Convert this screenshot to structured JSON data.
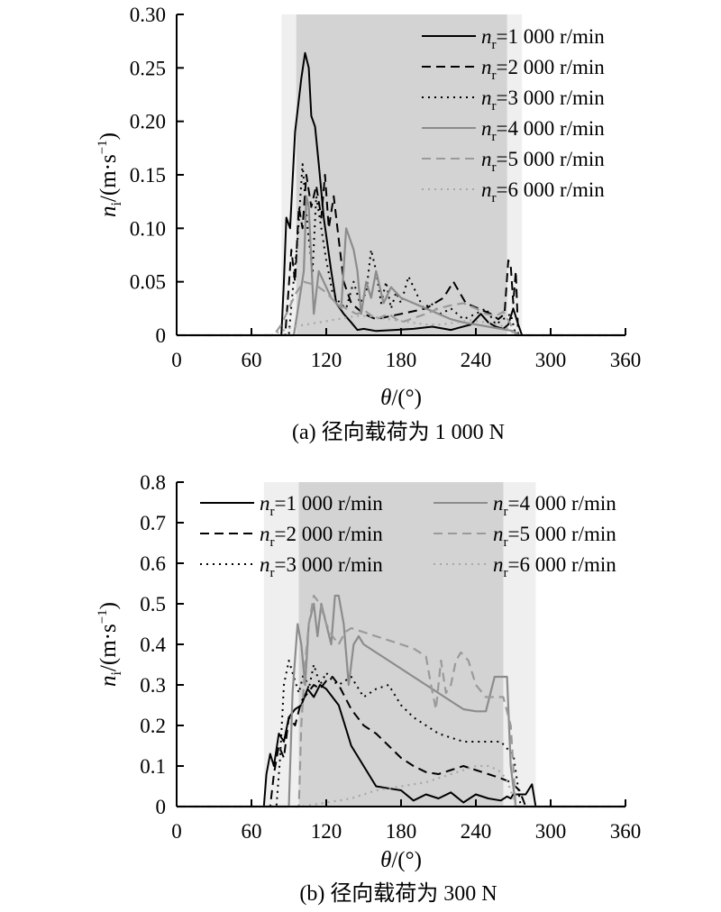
{
  "colors": {
    "band_light": "#efefef",
    "band_dark": "#d3d3d3",
    "series": [
      "#000000",
      "#000000",
      "#000000",
      "#8c8c8c",
      "#9a9a9a",
      "#a8a8a8"
    ]
  },
  "chart_data": [
    {
      "type": "line",
      "caption": "(a) 径向载荷为 1 000 N",
      "xlabel_sym": "θ",
      "xlabel_unit": "/(°)",
      "ylabel_sym": "n",
      "ylabel_sub": "i",
      "ylabel_unit_pre": "/(m·s",
      "ylabel_unit_sup": "−1",
      "ylabel_unit_post": ")",
      "xlim": [
        0,
        360
      ],
      "ylim": [
        0,
        0.3
      ],
      "xticks": [
        0,
        60,
        120,
        180,
        240,
        300,
        360
      ],
      "yticks": [
        0,
        0.05,
        0.1,
        0.15,
        0.2,
        0.25,
        0.3
      ],
      "ytick_labels": [
        "0",
        "0.05",
        "0.10",
        "0.15",
        "0.20",
        "0.25",
        "0.30"
      ],
      "bands": [
        {
          "x0": 84,
          "x1": 277,
          "shade": "light"
        },
        {
          "x0": 96,
          "x1": 265,
          "shade": "dark"
        }
      ],
      "legend": {
        "placement": "top-right",
        "columns": 1
      },
      "series": [
        {
          "name_sym": "n",
          "name_sub": "r",
          "name_rest": "=1 000 r/min",
          "dash": "solid",
          "x": [
            0,
            84,
            86,
            88,
            91,
            95,
            100,
            103,
            106,
            108,
            111,
            114,
            118,
            124,
            128,
            134,
            140,
            145,
            150,
            160,
            175,
            190,
            205,
            220,
            236,
            244,
            250,
            256,
            262,
            266,
            270,
            274,
            277,
            360
          ],
          "y": [
            0,
            0,
            0.05,
            0.11,
            0.1,
            0.19,
            0.24,
            0.264,
            0.25,
            0.205,
            0.195,
            0.16,
            0.11,
            0.06,
            0.03,
            0.02,
            0.012,
            0.005,
            0.006,
            0.004,
            0.005,
            0.006,
            0.008,
            0.005,
            0.01,
            0.02,
            0.012,
            0.008,
            0.006,
            0.01,
            0.025,
            0.01,
            0,
            0
          ]
        },
        {
          "name_sym": "n",
          "name_sub": "r",
          "name_rest": "=2 000 r/min",
          "dash": "dashed",
          "x": [
            0,
            87,
            89,
            92,
            95,
            98,
            101,
            104,
            108,
            112,
            116,
            119,
            122,
            126,
            130,
            134,
            140,
            150,
            160,
            180,
            200,
            214,
            222,
            232,
            242,
            252,
            258,
            263,
            266,
            268,
            270,
            272,
            274,
            360
          ],
          "y": [
            0,
            0,
            0.03,
            0.08,
            0.05,
            0.12,
            0.1,
            0.15,
            0.12,
            0.14,
            0.11,
            0.15,
            0.1,
            0.13,
            0.09,
            0.05,
            0.03,
            0.02,
            0.015,
            0.02,
            0.025,
            0.035,
            0.05,
            0.03,
            0.025,
            0.02,
            0.015,
            0.02,
            0.07,
            0.065,
            0.03,
            0.06,
            0,
            0
          ]
        },
        {
          "name_sym": "n",
          "name_sub": "r",
          "name_rest": "=3 000 r/min",
          "dash": "dotted",
          "x": [
            0,
            90,
            93,
            97,
            101,
            105,
            109,
            112,
            116,
            120,
            125,
            131,
            136,
            142,
            147,
            152,
            156,
            160,
            164,
            168,
            172,
            176,
            180,
            186,
            192,
            198,
            204,
            212,
            220,
            230,
            240,
            248,
            256,
            262,
            268,
            272,
            360
          ],
          "y": [
            0,
            0,
            0.04,
            0.09,
            0.16,
            0.1,
            0.06,
            0.13,
            0.1,
            0.07,
            0.04,
            0.03,
            0.025,
            0.05,
            0.03,
            0.04,
            0.08,
            0.06,
            0.03,
            0.05,
            0.025,
            0.04,
            0.03,
            0.055,
            0.04,
            0.025,
            0.03,
            0.02,
            0.025,
            0.015,
            0.02,
            0.025,
            0.01,
            0.015,
            0.02,
            0,
            0
          ]
        },
        {
          "name_sym": "n",
          "name_sub": "r",
          "name_rest": "=4 000 r/min",
          "dash": "solid",
          "x": [
            0,
            94,
            98,
            102,
            104,
            106,
            110,
            114,
            118,
            124,
            128,
            132,
            136,
            142,
            145,
            148,
            152,
            156,
            160,
            166,
            172,
            180,
            190,
            200,
            210,
            220,
            230,
            240,
            250,
            260,
            270,
            275,
            360
          ],
          "y": [
            0,
            0,
            0.03,
            0.06,
            0.13,
            0.12,
            0.02,
            0.06,
            0.05,
            0.035,
            0.03,
            0.025,
            0.1,
            0.08,
            0.06,
            0.02,
            0.05,
            0.035,
            0.06,
            0.03,
            0.045,
            0.035,
            0.03,
            0.025,
            0.02,
            0.015,
            0.012,
            0.01,
            0.008,
            0.006,
            0.004,
            0,
            0
          ]
        },
        {
          "name_sym": "n",
          "name_sub": "r",
          "name_rest": "=5 000 r/min",
          "dash": "dashed",
          "x": [
            0,
            78,
            84,
            90,
            96,
            102,
            108,
            114,
            120,
            128,
            136,
            144,
            152,
            160,
            170,
            180,
            190,
            200,
            210,
            220,
            230,
            240,
            248,
            256,
            262,
            268,
            272,
            360
          ],
          "y": [
            0,
            0,
            0.01,
            0.025,
            0.04,
            0.05,
            0.048,
            0.045,
            0.04,
            0.03,
            0.025,
            0.02,
            0.022,
            0.015,
            0.02,
            0.012,
            0.016,
            0.02,
            0.025,
            0.028,
            0.03,
            0.025,
            0.02,
            0.018,
            0.022,
            0.01,
            0,
            0
          ]
        },
        {
          "name_sym": "n",
          "name_sub": "r",
          "name_rest": "=6 000 r/min",
          "dash": "dotted",
          "x": [
            0,
            76,
            84,
            94,
            104,
            114,
            124,
            134,
            144,
            154,
            164,
            176,
            188,
            200,
            212,
            224,
            236,
            248,
            258,
            266,
            272,
            360
          ],
          "y": [
            0,
            0,
            0.004,
            0.008,
            0.01,
            0.012,
            0.014,
            0.016,
            0.018,
            0.018,
            0.016,
            0.014,
            0.012,
            0.01,
            0.01,
            0.012,
            0.014,
            0.012,
            0.01,
            0.006,
            0,
            0
          ]
        }
      ]
    },
    {
      "type": "line",
      "caption": "(b) 径向载荷为 300 N",
      "xlabel_sym": "θ",
      "xlabel_unit": "/(°)",
      "ylabel_sym": "n",
      "ylabel_sub": "i",
      "ylabel_unit_pre": "/(m·s",
      "ylabel_unit_sup": "−1",
      "ylabel_unit_post": ")",
      "xlim": [
        0,
        360
      ],
      "ylim": [
        0,
        0.8
      ],
      "xticks": [
        0,
        60,
        120,
        180,
        240,
        300,
        360
      ],
      "yticks": [
        0,
        0.1,
        0.2,
        0.3,
        0.4,
        0.5,
        0.6,
        0.7,
        0.8
      ],
      "ytick_labels": [
        "0",
        "0.1",
        "0.2",
        "0.3",
        "0.4",
        "0.5",
        "0.6",
        "0.7",
        "0.8"
      ],
      "bands": [
        {
          "x0": 70,
          "x1": 288,
          "shade": "light"
        },
        {
          "x0": 98,
          "x1": 262,
          "shade": "dark"
        }
      ],
      "legend": {
        "placement": "top",
        "columns": 2
      },
      "series": [
        {
          "name_sym": "n",
          "name_sub": "r",
          "name_rest": "=1 000 r/min",
          "dash": "solid",
          "x": [
            0,
            70,
            72,
            75,
            78,
            82,
            86,
            90,
            95,
            100,
            105,
            110,
            115,
            120,
            125,
            130,
            135,
            140,
            150,
            160,
            170,
            180,
            190,
            200,
            210,
            220,
            230,
            240,
            250,
            260,
            265,
            268,
            270,
            275,
            280,
            285,
            288,
            360
          ],
          "y": [
            0,
            0,
            0.08,
            0.13,
            0.1,
            0.18,
            0.16,
            0.22,
            0.24,
            0.25,
            0.29,
            0.27,
            0.3,
            0.29,
            0.27,
            0.25,
            0.2,
            0.15,
            0.1,
            0.05,
            0.045,
            0.04,
            0.015,
            0.03,
            0.02,
            0.035,
            0.01,
            0.03,
            0.02,
            0.015,
            0.025,
            0.02,
            0.03,
            0.03,
            0.03,
            0.055,
            0,
            0
          ]
        },
        {
          "name_sym": "n",
          "name_sub": "r",
          "name_rest": "=2 000 r/min",
          "dash": "dashed",
          "x": [
            0,
            75,
            78,
            82,
            86,
            90,
            95,
            100,
            105,
            110,
            115,
            120,
            125,
            130,
            140,
            150,
            160,
            170,
            180,
            190,
            200,
            210,
            220,
            230,
            240,
            250,
            260,
            268,
            275,
            280,
            360
          ],
          "y": [
            0,
            0,
            0.08,
            0.15,
            0.12,
            0.22,
            0.2,
            0.26,
            0.28,
            0.3,
            0.29,
            0.31,
            0.32,
            0.3,
            0.24,
            0.2,
            0.18,
            0.15,
            0.12,
            0.1,
            0.085,
            0.08,
            0.09,
            0.1,
            0.09,
            0.08,
            0.07,
            0.06,
            0.04,
            0,
            0
          ]
        },
        {
          "name_sym": "n",
          "name_sub": "r",
          "name_rest": "=3 000 r/min",
          "dash": "dotted",
          "x": [
            0,
            80,
            83,
            86,
            90,
            94,
            98,
            102,
            106,
            110,
            115,
            120,
            125,
            130,
            140,
            150,
            160,
            170,
            180,
            190,
            200,
            210,
            220,
            230,
            240,
            250,
            260,
            266,
            270,
            276,
            360
          ],
          "y": [
            0,
            0,
            0.12,
            0.3,
            0.36,
            0.32,
            0.28,
            0.33,
            0.29,
            0.35,
            0.3,
            0.33,
            0.31,
            0.3,
            0.32,
            0.27,
            0.29,
            0.3,
            0.25,
            0.22,
            0.2,
            0.18,
            0.17,
            0.16,
            0.16,
            0.16,
            0.16,
            0.14,
            0.13,
            0,
            0
          ]
        },
        {
          "name_sym": "n",
          "name_sub": "r",
          "name_rest": "=4 000 r/min",
          "dash": "solid",
          "x": [
            0,
            90,
            93,
            97,
            100,
            103,
            106,
            110,
            113,
            116,
            120,
            124,
            127,
            130,
            134,
            138,
            142,
            146,
            150,
            160,
            170,
            180,
            190,
            200,
            210,
            220,
            230,
            240,
            248,
            255,
            262,
            265,
            268,
            272,
            360
          ],
          "y": [
            0,
            0,
            0.28,
            0.45,
            0.4,
            0.3,
            0.45,
            0.5,
            0.42,
            0.5,
            0.45,
            0.4,
            0.52,
            0.52,
            0.45,
            0.3,
            0.4,
            0.42,
            0.4,
            0.38,
            0.36,
            0.34,
            0.32,
            0.3,
            0.28,
            0.26,
            0.24,
            0.235,
            0.235,
            0.32,
            0.32,
            0.32,
            0.1,
            0,
            0
          ]
        },
        {
          "name_sym": "n",
          "name_sub": "r",
          "name_rest": "=5 000 r/min",
          "dash": "dashed",
          "x": [
            0,
            98,
            100,
            103,
            106,
            110,
            115,
            120,
            125,
            130,
            135,
            140,
            150,
            160,
            170,
            180,
            190,
            200,
            204,
            208,
            212,
            216,
            220,
            224,
            228,
            234,
            240,
            248,
            256,
            262,
            268,
            272,
            360
          ],
          "y": [
            0,
            0,
            0.2,
            0.35,
            0.45,
            0.52,
            0.5,
            0.45,
            0.42,
            0.4,
            0.43,
            0.44,
            0.43,
            0.42,
            0.41,
            0.4,
            0.39,
            0.37,
            0.3,
            0.24,
            0.36,
            0.28,
            0.3,
            0.36,
            0.38,
            0.36,
            0.3,
            0.27,
            0.27,
            0.27,
            0.2,
            0,
            0
          ]
        },
        {
          "name_sym": "n",
          "name_sub": "r",
          "name_rest": "=6 000 r/min",
          "dash": "dotted",
          "x": [
            0,
            100,
            110,
            120,
            130,
            140,
            150,
            160,
            170,
            180,
            190,
            200,
            210,
            220,
            230,
            240,
            250,
            258,
            264,
            268,
            272,
            360
          ],
          "y": [
            0,
            0,
            0.005,
            0.01,
            0.015,
            0.02,
            0.03,
            0.04,
            0.045,
            0.05,
            0.055,
            0.06,
            0.07,
            0.08,
            0.09,
            0.1,
            0.1,
            0.09,
            0.07,
            0.04,
            0,
            0
          ]
        }
      ]
    }
  ]
}
